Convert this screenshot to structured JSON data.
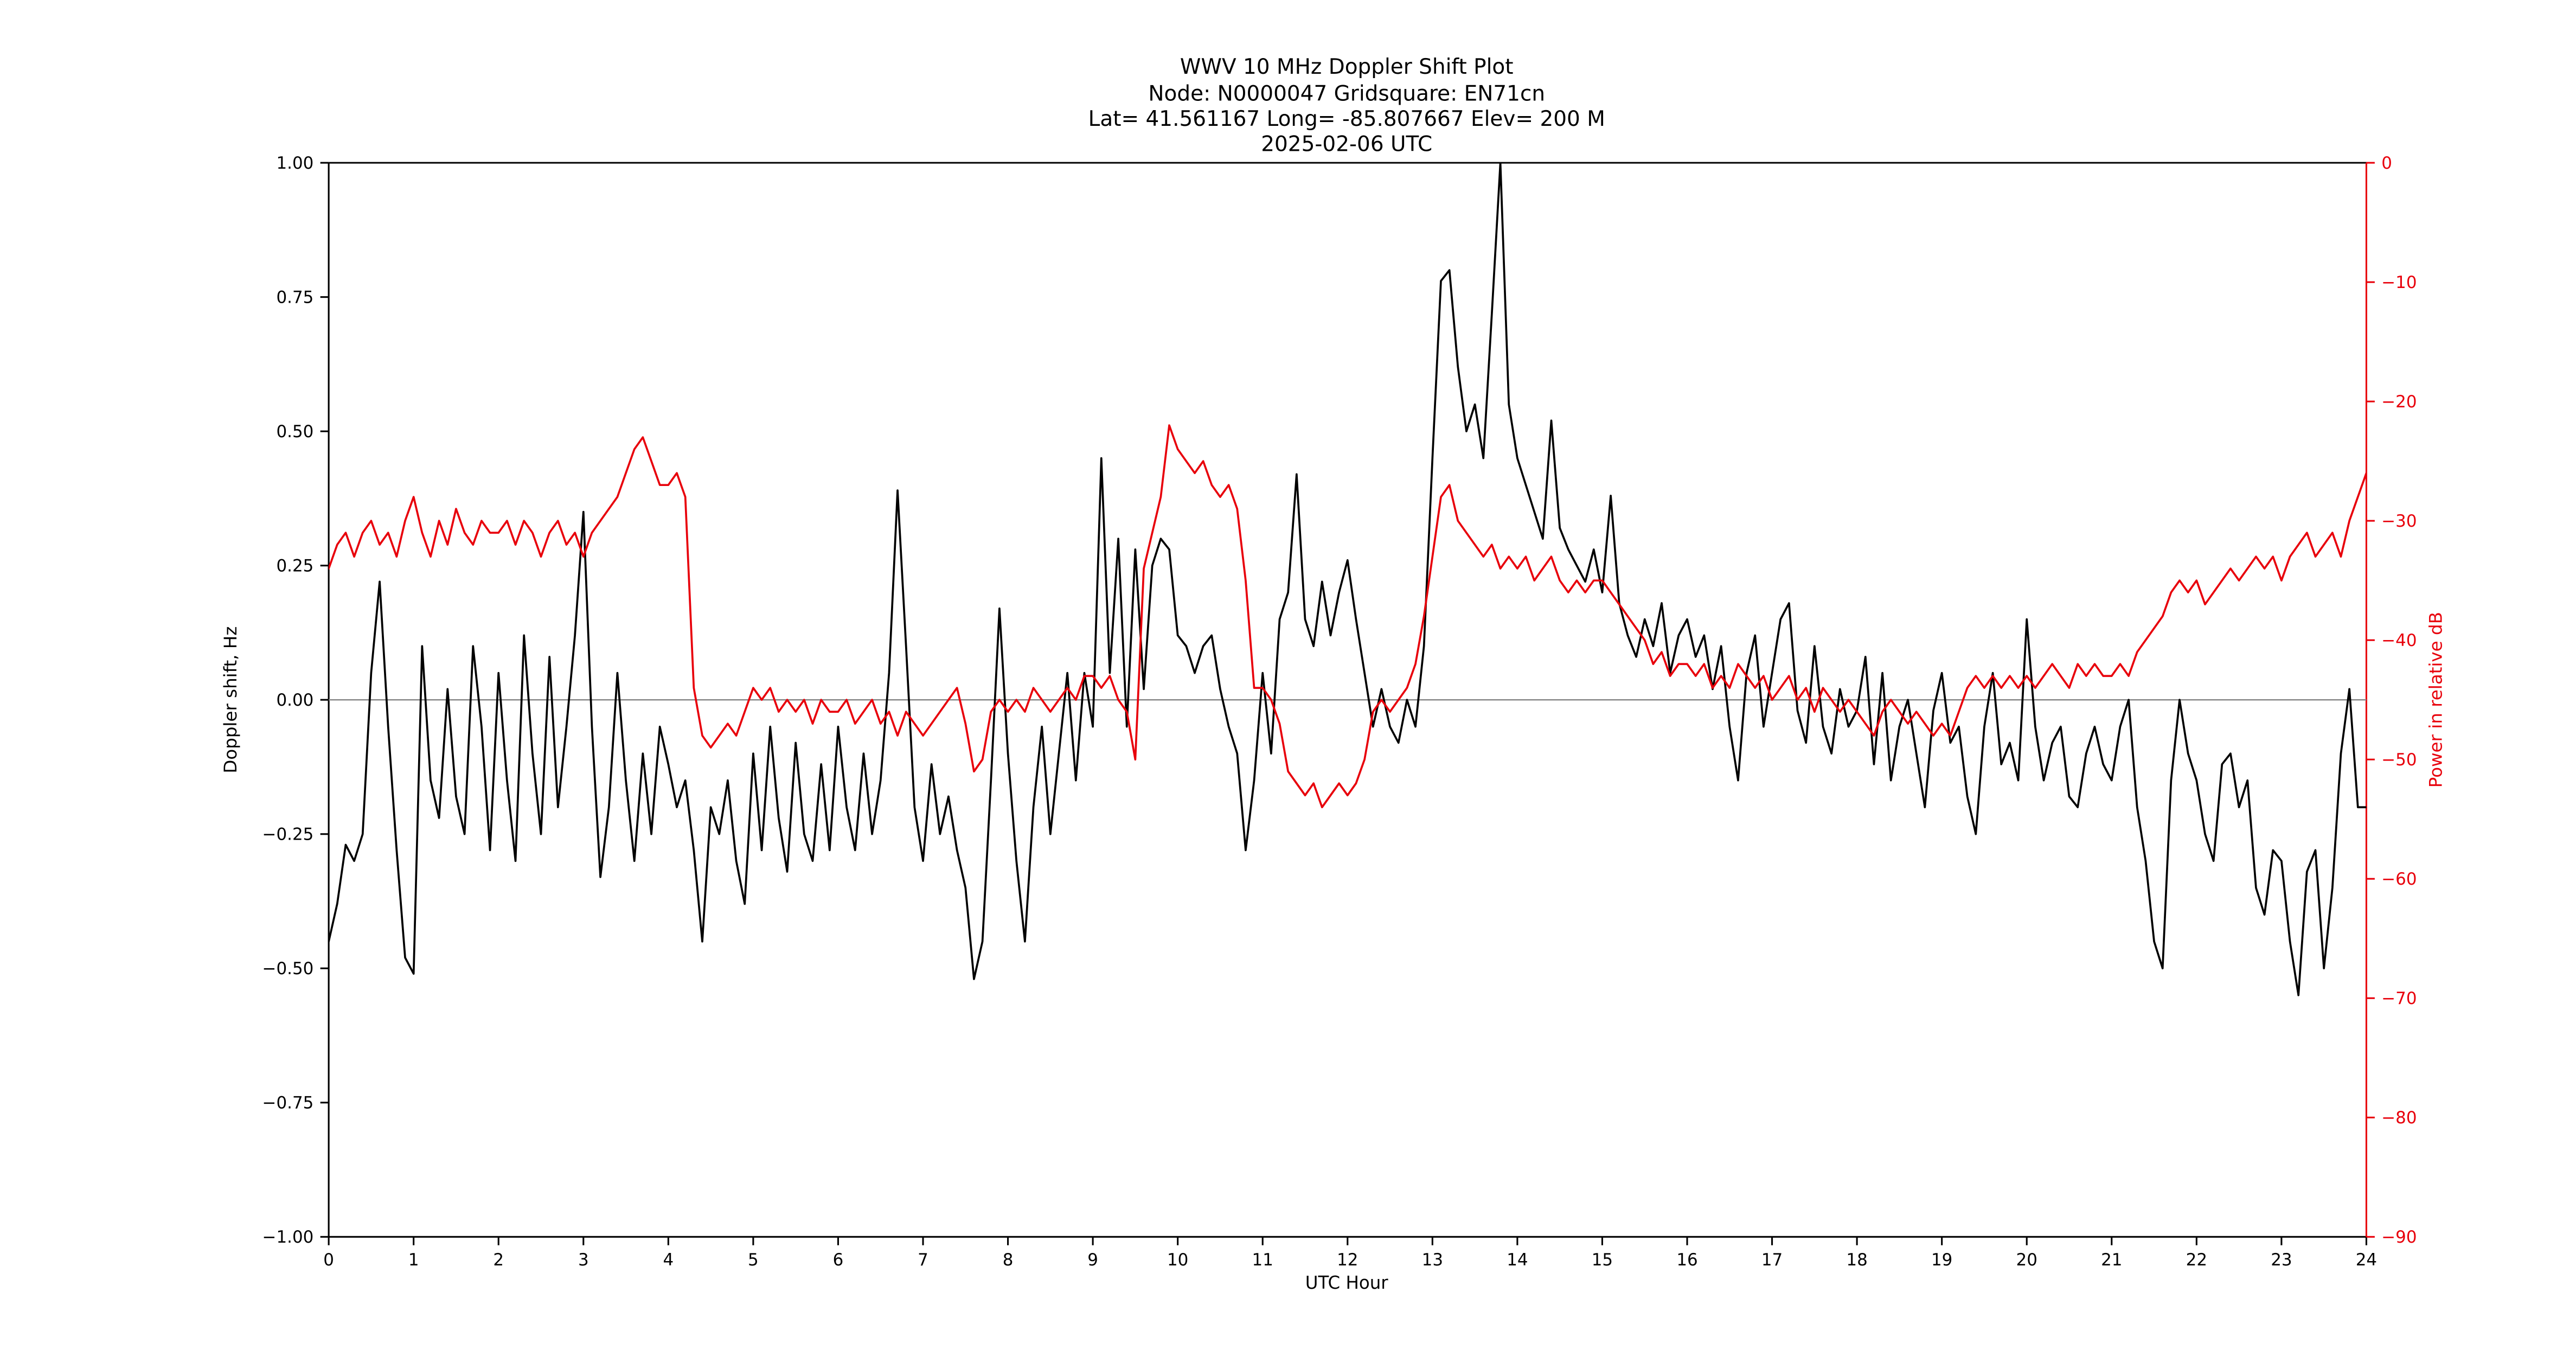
{
  "page": {
    "background": "#ffffff"
  },
  "chart_data": {
    "type": "line",
    "title_lines": [
      "WWV 10 MHz Doppler Shift Plot",
      "Node:  N0000047     Gridsquare:  EN71cn",
      "Lat= 41.561167    Long= -85.807667    Elev= 200 M",
      "2025-02-06  UTC"
    ],
    "xlabel": "UTC Hour",
    "ylabel_left": "Doppler shift, Hz",
    "ylabel_right": "Power in relative dB",
    "xlim": [
      0,
      24
    ],
    "ylim_left": [
      -1.0,
      1.0
    ],
    "ylim_right": [
      -90,
      0
    ],
    "grid": false,
    "legend": "none",
    "zero_line_value": 0.0,
    "colors": {
      "doppler": "#000000",
      "power": "#e8000b",
      "zero_line": "#888888",
      "spine": "#000000"
    },
    "x_ticks": [
      {
        "v": 0,
        "label": "0"
      },
      {
        "v": 1,
        "label": "1"
      },
      {
        "v": 2,
        "label": "2"
      },
      {
        "v": 3,
        "label": "3"
      },
      {
        "v": 4,
        "label": "4"
      },
      {
        "v": 5,
        "label": "5"
      },
      {
        "v": 6,
        "label": "6"
      },
      {
        "v": 7,
        "label": "7"
      },
      {
        "v": 8,
        "label": "8"
      },
      {
        "v": 9,
        "label": "9"
      },
      {
        "v": 10,
        "label": "10"
      },
      {
        "v": 11,
        "label": "11"
      },
      {
        "v": 12,
        "label": "12"
      },
      {
        "v": 13,
        "label": "13"
      },
      {
        "v": 14,
        "label": "14"
      },
      {
        "v": 15,
        "label": "15"
      },
      {
        "v": 16,
        "label": "16"
      },
      {
        "v": 17,
        "label": "17"
      },
      {
        "v": 18,
        "label": "18"
      },
      {
        "v": 19,
        "label": "19"
      },
      {
        "v": 20,
        "label": "20"
      },
      {
        "v": 21,
        "label": "21"
      },
      {
        "v": 22,
        "label": "22"
      },
      {
        "v": 23,
        "label": "23"
      },
      {
        "v": 24,
        "label": "24"
      }
    ],
    "y_ticks_left": [
      {
        "v": 1.0,
        "label": "1.00"
      },
      {
        "v": 0.75,
        "label": "0.75"
      },
      {
        "v": 0.5,
        "label": "0.50"
      },
      {
        "v": 0.25,
        "label": "0.25"
      },
      {
        "v": 0.0,
        "label": "0.00"
      },
      {
        "v": -0.25,
        "label": "−0.25"
      },
      {
        "v": -0.5,
        "label": "−0.50"
      },
      {
        "v": -0.75,
        "label": "−0.75"
      },
      {
        "v": -1.0,
        "label": "−1.00"
      }
    ],
    "y_ticks_right": [
      {
        "v": 0,
        "label": "0"
      },
      {
        "v": -10,
        "label": "−10"
      },
      {
        "v": -20,
        "label": "−20"
      },
      {
        "v": -30,
        "label": "−30"
      },
      {
        "v": -40,
        "label": "−40"
      },
      {
        "v": -50,
        "label": "−50"
      },
      {
        "v": -60,
        "label": "−60"
      },
      {
        "v": -70,
        "label": "−70"
      },
      {
        "v": -80,
        "label": "−80"
      },
      {
        "v": -90,
        "label": "−90"
      }
    ],
    "x_start": 0,
    "x_step": 0.1,
    "series": [
      {
        "name": "Doppler shift (Hz)",
        "axis": "left",
        "color_key": "doppler",
        "values": [
          -0.45,
          -0.38,
          -0.27,
          -0.3,
          -0.25,
          0.05,
          0.22,
          -0.05,
          -0.28,
          -0.48,
          -0.51,
          0.1,
          -0.15,
          -0.22,
          0.02,
          -0.18,
          -0.25,
          0.1,
          -0.05,
          -0.28,
          0.05,
          -0.15,
          -0.3,
          0.12,
          -0.1,
          -0.25,
          0.08,
          -0.2,
          -0.05,
          0.12,
          0.35,
          -0.05,
          -0.33,
          -0.2,
          0.05,
          -0.15,
          -0.3,
          -0.1,
          -0.25,
          -0.05,
          -0.12,
          -0.2,
          -0.15,
          -0.28,
          -0.45,
          -0.2,
          -0.25,
          -0.15,
          -0.3,
          -0.38,
          -0.1,
          -0.28,
          -0.05,
          -0.22,
          -0.32,
          -0.08,
          -0.25,
          -0.3,
          -0.12,
          -0.28,
          -0.05,
          -0.2,
          -0.28,
          -0.1,
          -0.25,
          -0.15,
          0.05,
          0.39,
          0.1,
          -0.2,
          -0.3,
          -0.12,
          -0.25,
          -0.18,
          -0.28,
          -0.35,
          -0.52,
          -0.45,
          -0.15,
          0.17,
          -0.1,
          -0.3,
          -0.45,
          -0.2,
          -0.05,
          -0.25,
          -0.1,
          0.05,
          -0.15,
          0.05,
          -0.05,
          0.45,
          0.05,
          0.3,
          -0.05,
          0.28,
          0.02,
          0.25,
          0.3,
          0.28,
          0.12,
          0.1,
          0.05,
          0.1,
          0.12,
          0.02,
          -0.05,
          -0.1,
          -0.28,
          -0.15,
          0.05,
          -0.1,
          0.15,
          0.2,
          0.42,
          0.15,
          0.1,
          0.22,
          0.12,
          0.2,
          0.26,
          0.15,
          0.05,
          -0.05,
          0.02,
          -0.05,
          -0.08,
          0.0,
          -0.05,
          0.1,
          0.45,
          0.78,
          0.8,
          0.62,
          0.5,
          0.55,
          0.45,
          0.72,
          1.0,
          0.55,
          0.45,
          0.4,
          0.35,
          0.3,
          0.52,
          0.32,
          0.28,
          0.25,
          0.22,
          0.28,
          0.2,
          0.38,
          0.18,
          0.12,
          0.08,
          0.15,
          0.1,
          0.18,
          0.05,
          0.12,
          0.15,
          0.08,
          0.12,
          0.02,
          0.1,
          -0.05,
          -0.15,
          0.05,
          0.12,
          -0.05,
          0.05,
          0.15,
          0.18,
          -0.02,
          -0.08,
          0.1,
          -0.05,
          -0.1,
          0.02,
          -0.05,
          -0.02,
          0.08,
          -0.12,
          0.05,
          -0.15,
          -0.05,
          0.0,
          -0.1,
          -0.2,
          -0.02,
          0.05,
          -0.08,
          -0.05,
          -0.18,
          -0.25,
          -0.05,
          0.05,
          -0.12,
          -0.08,
          -0.15,
          0.15,
          -0.05,
          -0.15,
          -0.08,
          -0.05,
          -0.18,
          -0.2,
          -0.1,
          -0.05,
          -0.12,
          -0.15,
          -0.05,
          0.0,
          -0.2,
          -0.3,
          -0.45,
          -0.5,
          -0.15,
          0.0,
          -0.1,
          -0.15,
          -0.25,
          -0.3,
          -0.12,
          -0.1,
          -0.2,
          -0.15,
          -0.35,
          -0.4,
          -0.28,
          -0.3,
          -0.45,
          -0.55,
          -0.32,
          -0.28,
          -0.5,
          -0.35,
          -0.1,
          0.02,
          -0.2,
          -0.2
        ]
      },
      {
        "name": "Power in relative dB",
        "axis": "right",
        "color_key": "power",
        "values": [
          -34,
          -32,
          -31,
          -33,
          -31,
          -30,
          -32,
          -31,
          -33,
          -30,
          -28,
          -31,
          -33,
          -30,
          -32,
          -29,
          -31,
          -32,
          -30,
          -31,
          -31,
          -30,
          -32,
          -30,
          -31,
          -33,
          -31,
          -30,
          -32,
          -31,
          -33,
          -31,
          -30,
          -29,
          -28,
          -26,
          -24,
          -23,
          -25,
          -27,
          -27,
          -26,
          -28,
          -44,
          -48,
          -49,
          -48,
          -47,
          -48,
          -46,
          -44,
          -45,
          -44,
          -46,
          -45,
          -46,
          -45,
          -47,
          -45,
          -46,
          -46,
          -45,
          -47,
          -46,
          -45,
          -47,
          -46,
          -48,
          -46,
          -47,
          -48,
          -47,
          -46,
          -45,
          -44,
          -47,
          -51,
          -50,
          -46,
          -45,
          -46,
          -45,
          -46,
          -44,
          -45,
          -46,
          -45,
          -44,
          -45,
          -43,
          -43,
          -44,
          -43,
          -45,
          -46,
          -50,
          -34,
          -31,
          -28,
          -22,
          -24,
          -25,
          -26,
          -25,
          -27,
          -28,
          -27,
          -29,
          -35,
          -44,
          -44,
          -45,
          -47,
          -51,
          -52,
          -53,
          -52,
          -54,
          -53,
          -52,
          -53,
          -52,
          -50,
          -46,
          -45,
          -46,
          -45,
          -44,
          -42,
          -38,
          -33,
          -28,
          -27,
          -30,
          -31,
          -32,
          -33,
          -32,
          -34,
          -33,
          -34,
          -33,
          -35,
          -34,
          -33,
          -35,
          -36,
          -35,
          -36,
          -35,
          -35,
          -36,
          -37,
          -38,
          -39,
          -40,
          -42,
          -41,
          -43,
          -42,
          -42,
          -43,
          -42,
          -44,
          -43,
          -44,
          -42,
          -43,
          -44,
          -43,
          -45,
          -44,
          -43,
          -45,
          -44,
          -46,
          -44,
          -45,
          -46,
          -45,
          -46,
          -47,
          -48,
          -46,
          -45,
          -46,
          -47,
          -46,
          -47,
          -48,
          -47,
          -48,
          -46,
          -44,
          -43,
          -44,
          -43,
          -44,
          -43,
          -44,
          -43,
          -44,
          -43,
          -42,
          -43,
          -44,
          -42,
          -43,
          -42,
          -43,
          -43,
          -42,
          -43,
          -41,
          -40,
          -39,
          -38,
          -36,
          -35,
          -36,
          -35,
          -37,
          -36,
          -35,
          -34,
          -35,
          -34,
          -33,
          -34,
          -33,
          -35,
          -33,
          -32,
          -31,
          -33,
          -32,
          -31,
          -33,
          -30,
          -28,
          -26
        ]
      }
    ]
  }
}
